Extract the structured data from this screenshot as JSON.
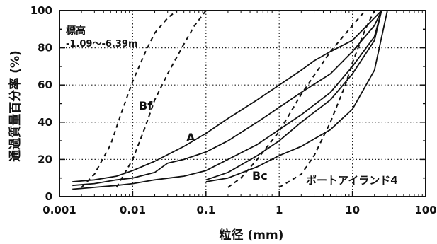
{
  "chart_data": {
    "type": "line",
    "xlabel": "粒径 (mm)",
    "ylabel": "通過質量百分率 (%)",
    "x_scale": "log",
    "xlim": [
      0.001,
      100
    ],
    "ylim": [
      0,
      100
    ],
    "x_ticks": [
      "0.001",
      "0.01",
      "0.1",
      "1",
      "10",
      "100"
    ],
    "y_ticks": [
      "0",
      "20",
      "40",
      "60",
      "80",
      "100"
    ],
    "grid": "dotted",
    "annotations": {
      "elevation_label": "標高",
      "elevation_range": "-1.09〜-6.39m",
      "site": "ポートアイランド4",
      "label_A": "A",
      "label_Bf": "Bf",
      "label_Bc": "Bc"
    },
    "series": [
      {
        "style": "solid",
        "points": [
          [
            0.0015,
            8
          ],
          [
            0.003,
            9
          ],
          [
            0.006,
            11
          ],
          [
            0.01,
            14
          ],
          [
            0.02,
            19
          ],
          [
            0.05,
            27
          ],
          [
            0.1,
            34
          ],
          [
            0.2,
            42
          ],
          [
            0.5,
            52
          ],
          [
            1,
            60
          ],
          [
            2,
            68
          ],
          [
            3,
            73
          ],
          [
            5,
            78
          ],
          [
            10,
            84
          ],
          [
            25,
            100
          ]
        ]
      },
      {
        "style": "solid",
        "points": [
          [
            0.0015,
            6
          ],
          [
            0.003,
            7
          ],
          [
            0.006,
            9
          ],
          [
            0.01,
            10
          ],
          [
            0.02,
            13
          ],
          [
            0.03,
            18
          ],
          [
            0.05,
            20
          ],
          [
            0.1,
            24
          ],
          [
            0.2,
            30
          ],
          [
            0.5,
            40
          ],
          [
            1,
            48
          ],
          [
            2,
            56
          ],
          [
            5,
            66
          ],
          [
            10,
            78
          ],
          [
            20,
            92
          ],
          [
            25,
            100
          ]
        ]
      },
      {
        "style": "solid",
        "points": [
          [
            0.0015,
            4
          ],
          [
            0.003,
            5
          ],
          [
            0.006,
            6
          ],
          [
            0.01,
            7
          ],
          [
            0.02,
            9
          ],
          [
            0.05,
            11
          ],
          [
            0.1,
            14
          ],
          [
            0.2,
            20
          ],
          [
            0.5,
            28
          ],
          [
            1,
            36
          ],
          [
            2,
            44
          ],
          [
            5,
            56
          ],
          [
            10,
            70
          ],
          [
            20,
            86
          ],
          [
            25,
            100
          ]
        ]
      },
      {
        "style": "solid",
        "points": [
          [
            0.1,
            9
          ],
          [
            0.2,
            13
          ],
          [
            0.5,
            22
          ],
          [
            1,
            30
          ],
          [
            2,
            40
          ],
          [
            5,
            52
          ],
          [
            10,
            66
          ],
          [
            20,
            84
          ],
          [
            25,
            100
          ]
        ]
      },
      {
        "style": "solid",
        "points": [
          [
            0.1,
            8
          ],
          [
            0.2,
            10
          ],
          [
            0.5,
            16
          ],
          [
            1,
            22
          ],
          [
            2,
            27
          ],
          [
            5,
            36
          ],
          [
            10,
            47
          ],
          [
            20,
            68
          ],
          [
            30,
            100
          ]
        ]
      },
      {
        "style": "dashed",
        "points": [
          [
            0.002,
            5
          ],
          [
            0.003,
            12
          ],
          [
            0.005,
            28
          ],
          [
            0.007,
            45
          ],
          [
            0.01,
            62
          ],
          [
            0.015,
            78
          ],
          [
            0.02,
            88
          ],
          [
            0.03,
            96
          ],
          [
            0.04,
            100
          ]
        ]
      },
      {
        "style": "dashed",
        "points": [
          [
            0.006,
            5
          ],
          [
            0.01,
            20
          ],
          [
            0.015,
            38
          ],
          [
            0.02,
            52
          ],
          [
            0.03,
            66
          ],
          [
            0.05,
            82
          ],
          [
            0.07,
            92
          ],
          [
            0.1,
            100
          ]
        ]
      },
      {
        "style": "dashed",
        "points": [
          [
            0.2,
            5
          ],
          [
            0.3,
            10
          ],
          [
            0.5,
            20
          ],
          [
            1,
            35
          ],
          [
            2,
            55
          ],
          [
            5,
            78
          ],
          [
            10,
            92
          ],
          [
            15,
            100
          ]
        ]
      },
      {
        "style": "dashed",
        "points": [
          [
            1,
            5
          ],
          [
            2,
            12
          ],
          [
            3,
            22
          ],
          [
            5,
            40
          ],
          [
            8,
            60
          ],
          [
            10,
            72
          ],
          [
            15,
            90
          ],
          [
            20,
            100
          ]
        ]
      }
    ]
  }
}
